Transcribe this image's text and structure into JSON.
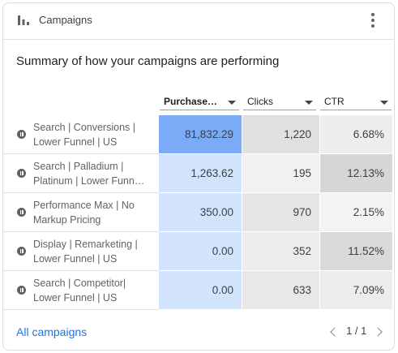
{
  "card": {
    "title": "Campaigns",
    "icon": "bar-chart-icon",
    "summary": "Summary of how your campaigns are performing"
  },
  "columns": [
    {
      "label": "Purchases…",
      "sorted": true
    },
    {
      "label": "Clicks",
      "sorted": false
    },
    {
      "label": "CTR",
      "sorted": false
    }
  ],
  "rows": [
    {
      "name_line1": "Search | Conversions |",
      "name_line2": "Lower Funnel | US",
      "status": "paused-icon",
      "purchases": "81,832.29",
      "clicks": "1,220",
      "ctr": "6.68%",
      "purchases_bg": "#7baaf7",
      "clicks_bg": "#e0e0e0",
      "ctr_bg": "#eeeeee"
    },
    {
      "name_line1": "Search | Palladium |",
      "name_line2": "Platinum | Lower Funn…",
      "status": "paused-icon",
      "purchases": "1,263.62",
      "clicks": "195",
      "ctr": "12.13%",
      "purchases_bg": "#d2e3fc",
      "clicks_bg": "#f1f1f1",
      "ctr_bg": "#d6d6d6"
    },
    {
      "name_line1": "Performance Max | No",
      "name_line2": "Markup Pricing",
      "status": "paused-icon",
      "purchases": "350.00",
      "clicks": "970",
      "ctr": "2.15%",
      "purchases_bg": "#d2e3fc",
      "clicks_bg": "#e5e5e5",
      "ctr_bg": "#f3f3f3"
    },
    {
      "name_line1": "Display | Remarketing |",
      "name_line2": "Lower Funnel | US",
      "status": "paused-icon",
      "purchases": "0.00",
      "clicks": "352",
      "ctr": "11.52%",
      "purchases_bg": "#d2e3fc",
      "clicks_bg": "#ededed",
      "ctr_bg": "#d9d9d9"
    },
    {
      "name_line1": "Search | Competitor|",
      "name_line2": "Lower Funnel | US",
      "status": "paused-icon",
      "purchases": "0.00",
      "clicks": "633",
      "ctr": "7.09%",
      "purchases_bg": "#d2e3fc",
      "clicks_bg": "#e8e8e8",
      "ctr_bg": "#ececec"
    }
  ],
  "footer": {
    "link": "All campaigns",
    "page": "1 / 1"
  }
}
